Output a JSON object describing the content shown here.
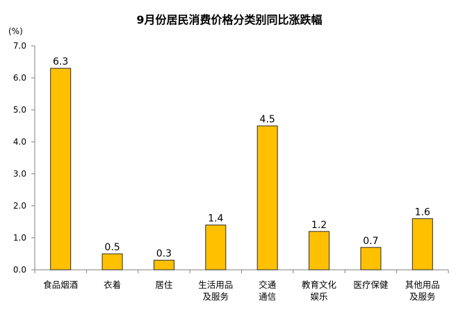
{
  "chart_data": {
    "type": "bar",
    "title": "9月份居民消费价格分类别同比涨跌幅",
    "unit_label": "(%)",
    "categories": [
      [
        "食品烟酒"
      ],
      [
        "衣着"
      ],
      [
        "居住"
      ],
      [
        "生活用品",
        "及服务"
      ],
      [
        "交通",
        "通信"
      ],
      [
        "教育文化",
        "娱乐"
      ],
      [
        "医疗保健"
      ],
      [
        "其他用品",
        "及服务"
      ]
    ],
    "values": [
      6.3,
      0.5,
      0.3,
      1.4,
      4.5,
      1.2,
      0.7,
      1.6
    ],
    "data_labels": [
      "6.3",
      "0.5",
      "0.3",
      "1.4",
      "4.5",
      "1.2",
      "0.7",
      "1.6"
    ],
    "yticks": [
      "0.0",
      "1.0",
      "2.0",
      "3.0",
      "4.0",
      "5.0",
      "6.0",
      "7.0"
    ],
    "ylim": [
      0,
      7
    ],
    "grid": false,
    "legend": "none",
    "colors": {
      "bar_fill": "#FFC000",
      "bar_stroke": "#2b2b2b",
      "axis": "#7f7f7f"
    }
  }
}
